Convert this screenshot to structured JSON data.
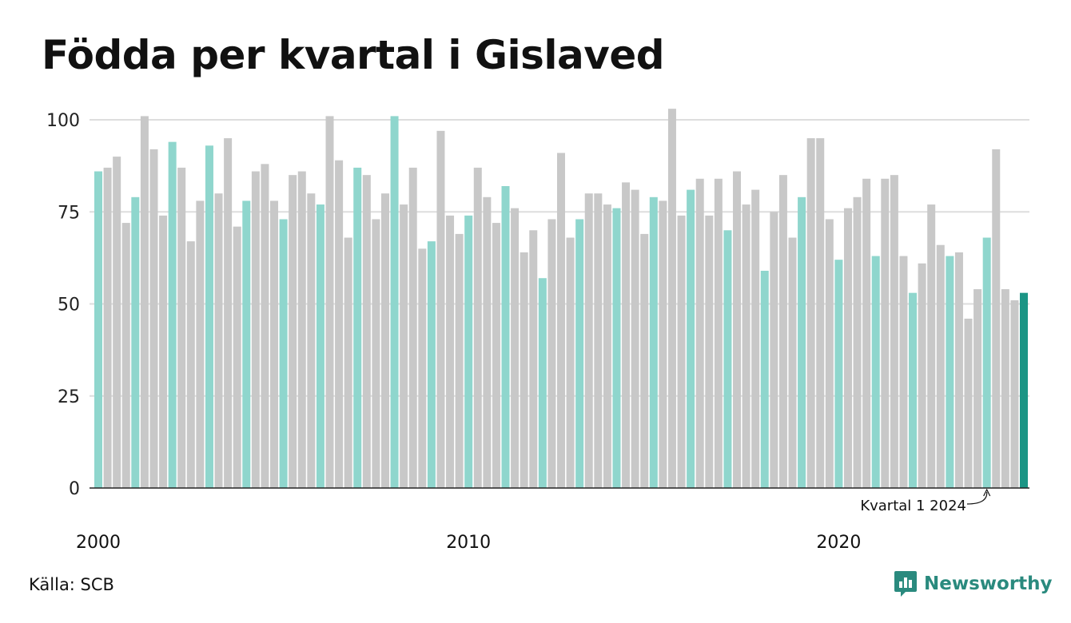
{
  "title": "Födda per kvartal i Gislaved",
  "source": "Källa: SCB",
  "brand": {
    "name": "Newsworthy",
    "icon": "newsworthy-logo-icon",
    "color": "#2a8a7e"
  },
  "colors": {
    "q1": "#8fd6cd",
    "other": "#c8c8c8",
    "highlight": "#1b9585",
    "grid": "#dddddd",
    "axis": "#222222"
  },
  "annotation": {
    "label": "Kvartal 1 2024",
    "target_index": 96
  },
  "chart_data": {
    "type": "bar",
    "ylim": [
      0,
      100
    ],
    "yticks": [
      0,
      25,
      50,
      75,
      100
    ],
    "xtick_labels": [
      {
        "label": "2000",
        "index": 0
      },
      {
        "label": "2010",
        "index": 40
      },
      {
        "label": "2020",
        "index": 80
      }
    ],
    "grid": true,
    "start": {
      "year": 2000,
      "quarter": 1
    },
    "highlight_index": 100,
    "values": [
      86,
      87,
      90,
      72,
      79,
      101,
      92,
      74,
      94,
      87,
      67,
      78,
      93,
      80,
      95,
      71,
      78,
      86,
      88,
      78,
      73,
      85,
      86,
      80,
      77,
      101,
      89,
      68,
      87,
      85,
      73,
      80,
      101,
      77,
      87,
      65,
      67,
      97,
      74,
      69,
      74,
      87,
      79,
      72,
      82,
      76,
      64,
      70,
      57,
      73,
      91,
      68,
      73,
      80,
      80,
      77,
      76,
      83,
      81,
      69,
      79,
      78,
      103,
      74,
      81,
      84,
      74,
      84,
      70,
      86,
      77,
      81,
      59,
      75,
      85,
      68,
      79,
      95,
      95,
      73,
      62,
      76,
      79,
      84,
      63,
      84,
      85,
      63,
      53,
      61,
      77,
      66,
      63,
      64,
      46,
      54,
      68,
      92,
      54,
      51,
      53
    ]
  }
}
